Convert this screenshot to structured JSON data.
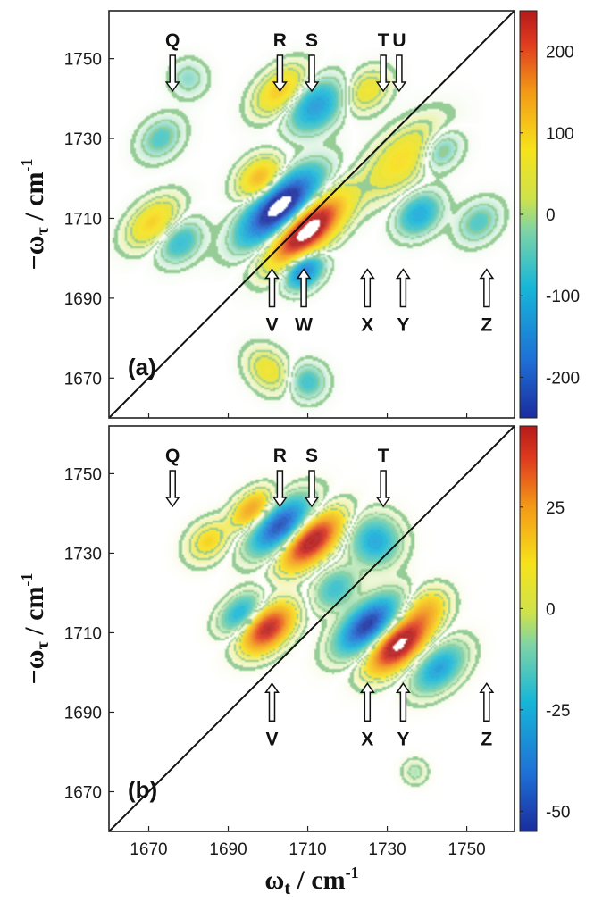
{
  "chart_data": [
    {
      "type": "heatmap",
      "panel_label": "(a)",
      "xlabel": "ωt / cm-1",
      "ylabel": "−ωτ / cm-1",
      "xlim": [
        1660,
        1762
      ],
      "ylim": [
        1660,
        1762
      ],
      "x_ticks": [
        1670,
        1690,
        1710,
        1730,
        1750
      ],
      "y_ticks": [
        1670,
        1690,
        1710,
        1730,
        1750
      ],
      "colorbar": {
        "min": -250,
        "max": 250,
        "ticks": [
          -200,
          -100,
          0,
          100,
          200
        ]
      },
      "diagonal_line": true,
      "markers": [
        {
          "label": "Q",
          "x": 1676,
          "dir": "down"
        },
        {
          "label": "R",
          "x": 1703,
          "dir": "down"
        },
        {
          "label": "S",
          "x": 1711,
          "dir": "down"
        },
        {
          "label": "T",
          "x": 1729,
          "dir": "down"
        },
        {
          "label": "U",
          "x": 1733,
          "dir": "down"
        },
        {
          "label": "V",
          "x": 1701,
          "dir": "up"
        },
        {
          "label": "W",
          "x": 1709,
          "dir": "up"
        },
        {
          "label": "X",
          "x": 1725,
          "dir": "up"
        },
        {
          "label": "Y",
          "x": 1734,
          "dir": "up"
        },
        {
          "label": "Z",
          "x": 1755,
          "dir": "up"
        }
      ],
      "peaks": [
        {
          "x": 1703,
          "y": 1713,
          "amplitude": -330,
          "sx": 3.2,
          "sy": 7.5,
          "angle": 42
        },
        {
          "x": 1710,
          "y": 1707,
          "amplitude": 330,
          "sx": 3.2,
          "sy": 7.5,
          "angle": 42
        },
        {
          "x": 1698,
          "y": 1720,
          "amplitude": 130,
          "sx": 3,
          "sy": 4,
          "angle": 42
        },
        {
          "x": 1709,
          "y": 1697,
          "amplitude": -180,
          "sx": 2.5,
          "sy": 3.5,
          "angle": 42
        },
        {
          "x": 1703,
          "y": 1742,
          "amplitude": 110,
          "sx": 3,
          "sy": 5,
          "angle": 42
        },
        {
          "x": 1712,
          "y": 1738,
          "amplitude": -130,
          "sx": 3.5,
          "sy": 5,
          "angle": 42
        },
        {
          "x": 1725,
          "y": 1742,
          "amplitude": 70,
          "sx": 3,
          "sy": 4,
          "angle": 42
        },
        {
          "x": 1734,
          "y": 1725,
          "amplitude": 90,
          "sx": 4,
          "sy": 8,
          "angle": 42
        },
        {
          "x": 1738,
          "y": 1711,
          "amplitude": -110,
          "sx": 3,
          "sy": 4,
          "angle": 42
        },
        {
          "x": 1743,
          "y": 1727,
          "amplitude": -70,
          "sx": 3,
          "sy": 4,
          "angle": 42
        },
        {
          "x": 1671,
          "y": 1709,
          "amplitude": 100,
          "sx": 3,
          "sy": 5,
          "angle": 42
        },
        {
          "x": 1678,
          "y": 1704,
          "amplitude": -80,
          "sx": 3,
          "sy": 4,
          "angle": 42
        },
        {
          "x": 1673,
          "y": 1730,
          "amplitude": -60,
          "sx": 3,
          "sy": 4,
          "angle": 42
        },
        {
          "x": 1700,
          "y": 1672,
          "amplitude": 70,
          "sx": 4,
          "sy": 3,
          "angle": 42
        },
        {
          "x": 1710,
          "y": 1669,
          "amplitude": -70,
          "sx": 3,
          "sy": 3,
          "angle": 42
        },
        {
          "x": 1753,
          "y": 1709,
          "amplitude": -60,
          "sx": 3,
          "sy": 4,
          "angle": 42
        },
        {
          "x": 1680,
          "y": 1745,
          "amplitude": -40,
          "sx": 3,
          "sy": 3,
          "angle": 42
        }
      ]
    },
    {
      "type": "heatmap",
      "panel_label": "(b)",
      "xlabel": "ωt / cm-1",
      "ylabel": "−ωτ / cm-1",
      "xlim": [
        1660,
        1762
      ],
      "ylim": [
        1660,
        1762
      ],
      "x_ticks": [
        1670,
        1690,
        1710,
        1730,
        1750
      ],
      "y_ticks": [
        1670,
        1690,
        1710,
        1730,
        1750
      ],
      "colorbar": {
        "min": -55,
        "max": 45,
        "ticks": [
          -50,
          -25,
          0,
          25
        ]
      },
      "diagonal_line": true,
      "markers": [
        {
          "label": "Q",
          "x": 1676,
          "dir": "down"
        },
        {
          "label": "R",
          "x": 1703,
          "dir": "down"
        },
        {
          "label": "S",
          "x": 1711,
          "dir": "down"
        },
        {
          "label": "T",
          "x": 1729,
          "dir": "down"
        },
        {
          "label": "V",
          "x": 1701,
          "dir": "up"
        },
        {
          "label": "X",
          "x": 1725,
          "dir": "up"
        },
        {
          "label": "Y",
          "x": 1734,
          "dir": "up"
        },
        {
          "label": "Z",
          "x": 1755,
          "dir": "up"
        }
      ],
      "peaks": [
        {
          "x": 1703,
          "y": 1737,
          "amplitude": -50,
          "sx": 3,
          "sy": 6,
          "angle": 42
        },
        {
          "x": 1711,
          "y": 1733,
          "amplitude": 50,
          "sx": 3,
          "sy": 6,
          "angle": 42
        },
        {
          "x": 1696,
          "y": 1741,
          "amplitude": 25,
          "sx": 2.5,
          "sy": 4,
          "angle": 42
        },
        {
          "x": 1700,
          "y": 1711,
          "amplitude": 45,
          "sx": 3,
          "sy": 5,
          "angle": 42
        },
        {
          "x": 1693,
          "y": 1715,
          "amplitude": -25,
          "sx": 2.5,
          "sy": 4,
          "angle": 42
        },
        {
          "x": 1725,
          "y": 1712,
          "amplitude": -55,
          "sx": 3,
          "sy": 6,
          "angle": 42
        },
        {
          "x": 1733,
          "y": 1707,
          "amplitude": 55,
          "sx": 3,
          "sy": 6,
          "angle": 42
        },
        {
          "x": 1743,
          "y": 1701,
          "amplitude": -30,
          "sx": 3,
          "sy": 5,
          "angle": 42
        },
        {
          "x": 1727,
          "y": 1733,
          "amplitude": -28,
          "sx": 4,
          "sy": 4,
          "angle": 42
        },
        {
          "x": 1717,
          "y": 1721,
          "amplitude": -20,
          "sx": 3,
          "sy": 4,
          "angle": 42
        },
        {
          "x": 1685,
          "y": 1733,
          "amplitude": 14,
          "sx": 3,
          "sy": 4,
          "angle": 42
        },
        {
          "x": 1740,
          "y": 1716,
          "amplitude": 16,
          "sx": 3,
          "sy": 4,
          "angle": 42
        },
        {
          "x": 1737,
          "y": 1675,
          "amplitude": -8,
          "sx": 2,
          "sy": 2,
          "angle": 42
        }
      ]
    }
  ]
}
